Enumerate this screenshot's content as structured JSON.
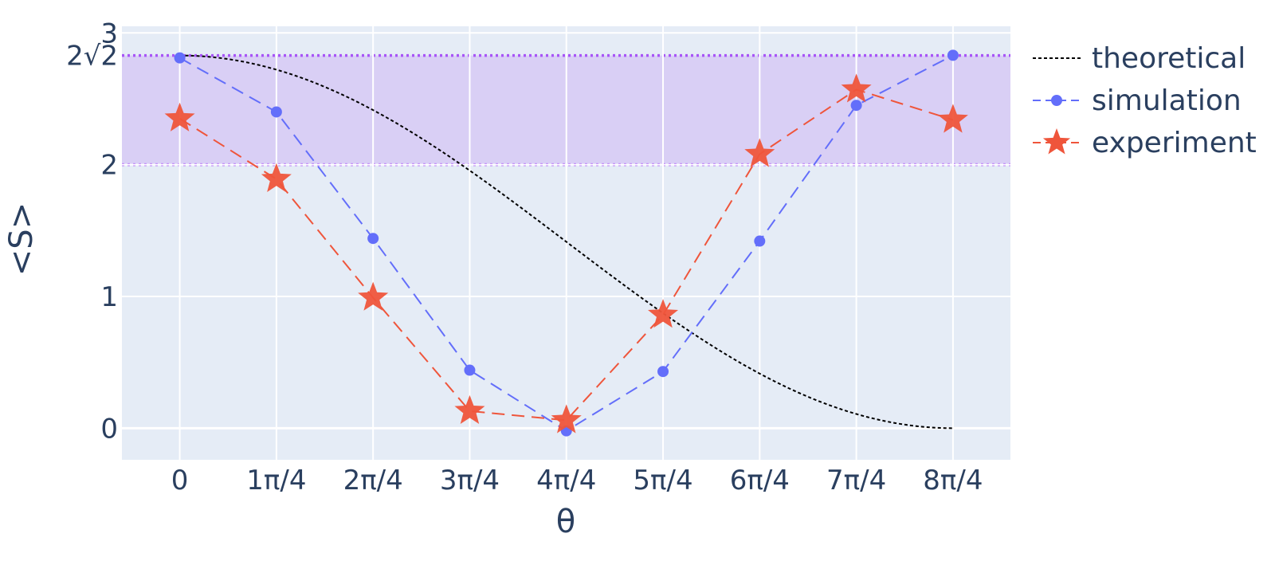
{
  "chart_data": {
    "type": "line",
    "xlabel": "θ",
    "ylabel": "<S>",
    "x_ticks": [
      {
        "value": 0,
        "label": "0"
      },
      {
        "value": 0.7853981634,
        "label": "1π/4"
      },
      {
        "value": 1.5707963268,
        "label": "2π/4"
      },
      {
        "value": 2.3561944902,
        "label": "3π/4"
      },
      {
        "value": 3.1415926536,
        "label": "4π/4"
      },
      {
        "value": 3.926990817,
        "label": "5π/4"
      },
      {
        "value": 4.7123889804,
        "label": "6π/4"
      },
      {
        "value": 5.4977871438,
        "label": "7π/4"
      },
      {
        "value": 6.2831853072,
        "label": "8π/4"
      }
    ],
    "y_ticks": [
      {
        "value": 0,
        "label": "0"
      },
      {
        "value": 1,
        "label": "1"
      },
      {
        "value": 2,
        "label": "2"
      },
      {
        "value": 2.8284271247,
        "label": "2√2"
      },
      {
        "value": 3,
        "label": "3"
      }
    ],
    "xlim": [
      -0.47,
      6.75
    ],
    "ylim": [
      -0.24,
      3.05
    ],
    "grid": true,
    "legend_position": "right",
    "shaded_band": {
      "y0": 2,
      "y1": 2.8284271247,
      "color": "#d9cff5",
      "line_color": "#a855f7"
    },
    "colors": {
      "plot_bg": "#e5ecf6",
      "grid": "#ffffff",
      "text": "#2a3f5f"
    },
    "series": [
      {
        "name": "theoretical",
        "style": "dotted",
        "color": "#000000",
        "curve": "1 + cos(x/2)",
        "amplitude_scale": 1.4142135624,
        "x_range": [
          0,
          6.2831853072
        ]
      },
      {
        "name": "simulation",
        "style": "dashed",
        "marker": "circle",
        "color": "#636efa",
        "x": [
          0,
          0.7853981634,
          1.5707963268,
          2.3561944902,
          3.1415926536,
          3.926990817,
          4.7123889804,
          5.4977871438,
          6.2831853072
        ],
        "y": [
          2.81,
          2.4,
          1.44,
          0.44,
          -0.02,
          0.43,
          1.42,
          2.45,
          2.83
        ]
      },
      {
        "name": "experiment",
        "style": "dashed",
        "marker": "star",
        "color": "#ef553b",
        "x": [
          0,
          0.7853981634,
          1.5707963268,
          2.3561944902,
          3.1415926536,
          3.926990817,
          4.7123889804,
          5.4977871438,
          6.2831853072
        ],
        "y": [
          2.35,
          1.89,
          0.99,
          0.13,
          0.06,
          0.86,
          2.08,
          2.57,
          2.34
        ]
      }
    ]
  }
}
